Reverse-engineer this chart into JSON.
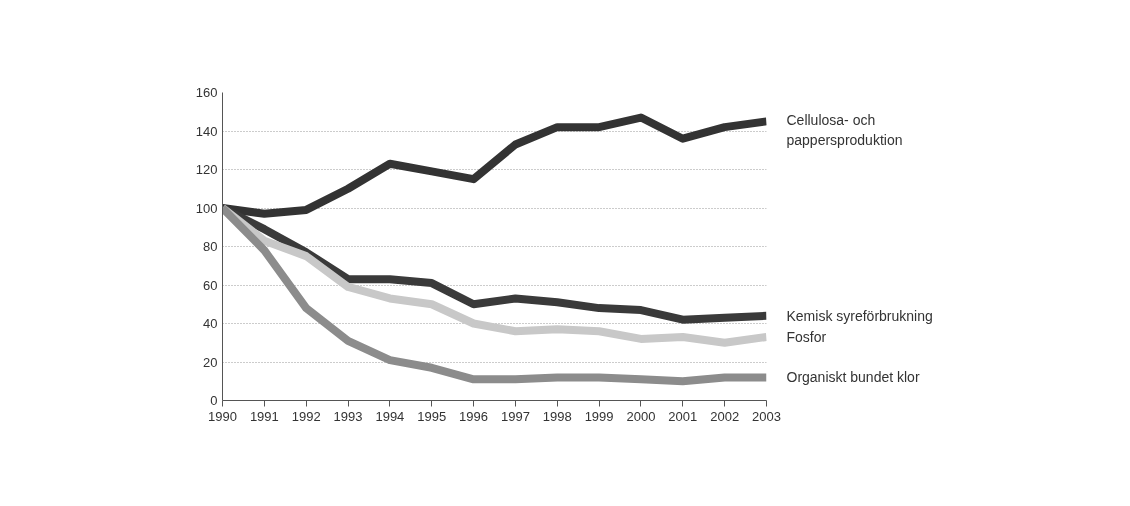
{
  "chart_data": {
    "type": "line",
    "x": [
      1990,
      1991,
      1992,
      1993,
      1994,
      1995,
      1996,
      1997,
      1998,
      1999,
      2000,
      2001,
      2002,
      2003
    ],
    "series": [
      {
        "name": "Cellulosa- och pappersproduktion",
        "color": "#333333",
        "values": [
          100,
          97,
          99,
          110,
          123,
          119,
          115,
          133,
          142,
          142,
          147,
          136,
          142,
          145
        ]
      },
      {
        "name": "Kemisk syreförbrukning",
        "color": "#3a3a3a",
        "values": [
          100,
          89,
          77,
          63,
          63,
          61,
          50,
          53,
          51,
          48,
          47,
          42,
          43,
          44
        ]
      },
      {
        "name": "Fosfor",
        "color": "#c8c8c8",
        "values": [
          100,
          83,
          75,
          59,
          53,
          50,
          40,
          36,
          37,
          36,
          32,
          33,
          30,
          33
        ]
      },
      {
        "name": "Organiskt bundet klor",
        "color": "#8c8c8c",
        "values": [
          100,
          78,
          48,
          31,
          21,
          17,
          11,
          11,
          12,
          12,
          11,
          10,
          12,
          12
        ]
      }
    ],
    "xlim": [
      1990,
      2003
    ],
    "xticks": [
      1990,
      1991,
      1992,
      1993,
      1994,
      1995,
      1996,
      1997,
      1998,
      1999,
      2000,
      2001,
      2002,
      2003
    ],
    "ylim": [
      0,
      160
    ],
    "yticks": [
      0,
      20,
      40,
      60,
      80,
      100,
      120,
      140,
      160
    ],
    "grid": "y",
    "line_style": "solid"
  }
}
